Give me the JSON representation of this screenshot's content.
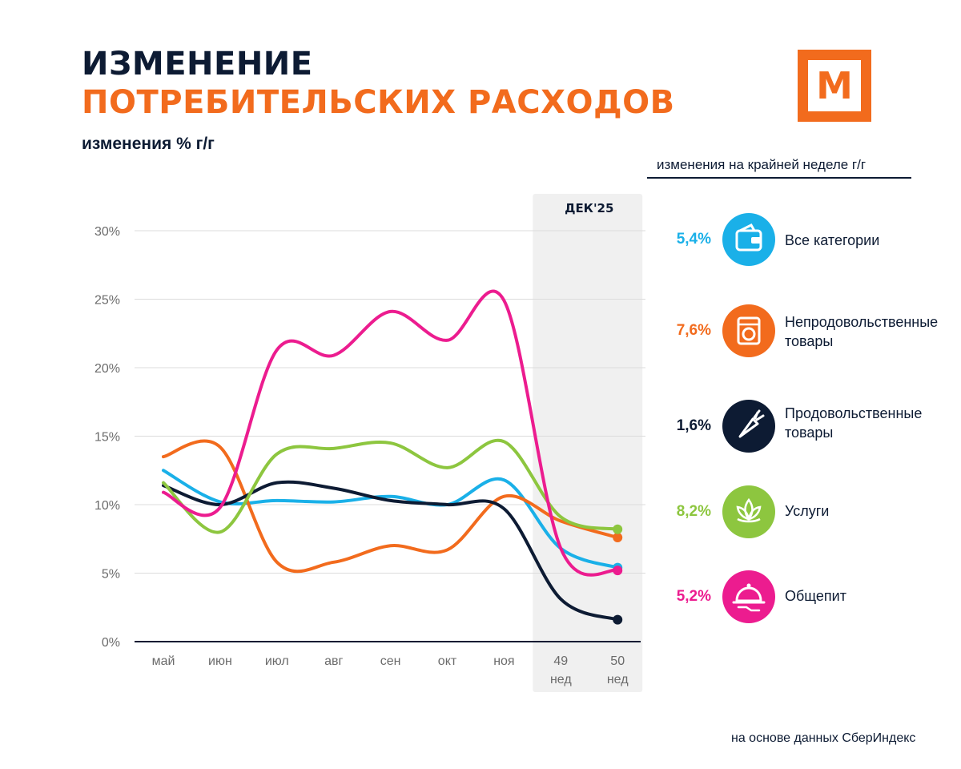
{
  "header": {
    "title_line1": "ИЗМЕНЕНИЕ",
    "title_line2": "ПОТРЕБИТЕЛЬСКИХ РАСХОДОВ",
    "subtitle": "изменения % г/г",
    "logo_letter": "М"
  },
  "legend": {
    "heading": "изменения на крайней неделе г/г",
    "items": [
      {
        "value": "5,4%",
        "label_line1": "Все категории",
        "label_line2": "",
        "color": "#1ab0e8",
        "icon": "wallet-icon"
      },
      {
        "value": "7,6%",
        "label_line1": "Непродовольственные",
        "label_line2": "товары",
        "color": "#f26b1d",
        "icon": "washing-machine-icon"
      },
      {
        "value": "1,6%",
        "label_line1": "Продовольственные",
        "label_line2": "товары",
        "color": "#0d1b33",
        "icon": "carrot-icon"
      },
      {
        "value": "8,2%",
        "label_line1": "Услуги",
        "label_line2": "",
        "color": "#8dc63f",
        "icon": "lotus-icon"
      },
      {
        "value": "5,2%",
        "label_line1": "Общепит",
        "label_line2": "",
        "color": "#ec1c8f",
        "icon": "cloche-icon"
      }
    ]
  },
  "source": "на основе данных СберИндекс",
  "chart_data": {
    "type": "line",
    "title": "",
    "ylabel": "",
    "xlabel": "",
    "highlight_label": "ДЕК'25",
    "categories": [
      {
        "line1": "май",
        "line2": ""
      },
      {
        "line1": "июн",
        "line2": ""
      },
      {
        "line1": "июл",
        "line2": ""
      },
      {
        "line1": "авг",
        "line2": ""
      },
      {
        "line1": "сен",
        "line2": ""
      },
      {
        "line1": "окт",
        "line2": ""
      },
      {
        "line1": "ноя",
        "line2": ""
      },
      {
        "line1": "49",
        "line2": "нед"
      },
      {
        "line1": "50",
        "line2": "нед"
      }
    ],
    "highlight_from_index": 7,
    "yticks": [
      "0%",
      "5%",
      "10%",
      "15%",
      "20%",
      "25%",
      "30%"
    ],
    "ylim": [
      0,
      30
    ],
    "series": [
      {
        "name": "Все категории",
        "color": "#1ab0e8",
        "values": [
          12.5,
          10.2,
          10.3,
          10.2,
          10.6,
          10.0,
          11.8,
          6.8,
          5.4
        ]
      },
      {
        "name": "Непродовольственные товары",
        "color": "#f26b1d",
        "values": [
          13.5,
          14.2,
          5.8,
          5.8,
          7.0,
          6.7,
          10.6,
          8.8,
          7.6
        ]
      },
      {
        "name": "Продовольственные товары",
        "color": "#0d1b33",
        "values": [
          11.4,
          10.0,
          11.6,
          11.2,
          10.3,
          10.0,
          9.7,
          3.1,
          1.6
        ]
      },
      {
        "name": "Услуги",
        "color": "#8dc63f",
        "values": [
          11.6,
          8.0,
          13.7,
          14.1,
          14.5,
          12.7,
          14.6,
          9.1,
          8.2
        ]
      },
      {
        "name": "Общепит",
        "color": "#ec1c8f",
        "values": [
          10.9,
          9.8,
          21.3,
          20.9,
          24.1,
          22.0,
          24.9,
          6.8,
          5.2
        ]
      }
    ]
  }
}
